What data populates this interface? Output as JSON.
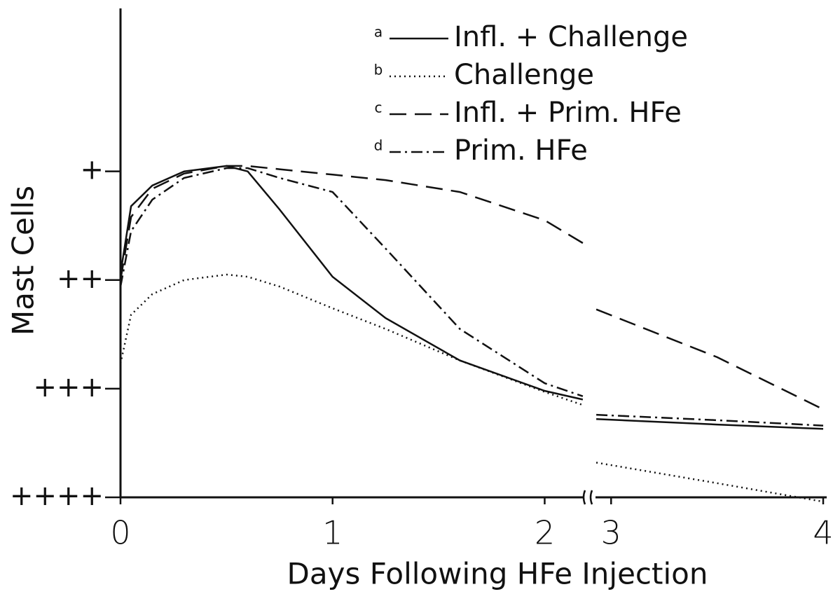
{
  "chart_data": {
    "type": "line",
    "x_label": "Days Following HFe Injection",
    "y_label": "Mast Cells",
    "x": [
      0,
      0.05,
      0.15,
      0.3,
      0.5,
      0.6,
      0.75,
      1.0,
      1.25,
      1.6,
      2.0,
      2.18,
      2.93,
      3.5,
      4
    ],
    "xlim": [
      0,
      4
    ],
    "xbreak": [
      2.2,
      2.9
    ],
    "xticks": [
      0,
      1,
      2,
      3,
      4
    ],
    "ylim": [
      4,
      -0.5
    ],
    "yticks": [
      {
        "value": 1,
        "label": "+"
      },
      {
        "value": 2,
        "label": "++"
      },
      {
        "value": 3,
        "label": "+++"
      },
      {
        "value": 4,
        "label": "++++"
      }
    ],
    "grid": false,
    "legend": "top-right",
    "series": [
      {
        "key": "a",
        "name": "Infl. + Challenge",
        "color": "#111111",
        "dash": "solid",
        "values": [
          1.94,
          1.32,
          1.13,
          1.0,
          0.95,
          1.0,
          1.35,
          1.97,
          2.35,
          2.74,
          3.02,
          3.1,
          3.28,
          3.33,
          3.37
        ]
      },
      {
        "key": "b",
        "name": "Challenge",
        "color": "#111111",
        "dash": "dotted",
        "values": [
          2.77,
          2.32,
          2.13,
          2.0,
          1.95,
          1.97,
          2.06,
          2.26,
          2.45,
          2.74,
          3.03,
          3.15,
          3.68,
          3.87,
          4.04
        ]
      },
      {
        "key": "c",
        "name": "Infl. + Prim. HFe",
        "color": "#111111",
        "dash": "dashed",
        "values": [
          2.0,
          1.42,
          1.16,
          1.02,
          0.95,
          0.95,
          0.98,
          1.03,
          1.08,
          1.19,
          1.45,
          1.66,
          2.27,
          2.71,
          3.19
        ]
      },
      {
        "key": "d",
        "name": "Prim. HFe",
        "color": "#111111",
        "dash": "dashdot",
        "values": [
          2.06,
          1.55,
          1.26,
          1.06,
          0.97,
          0.97,
          1.06,
          1.19,
          1.71,
          2.45,
          2.95,
          3.07,
          3.24,
          3.29,
          3.34
        ]
      }
    ]
  }
}
